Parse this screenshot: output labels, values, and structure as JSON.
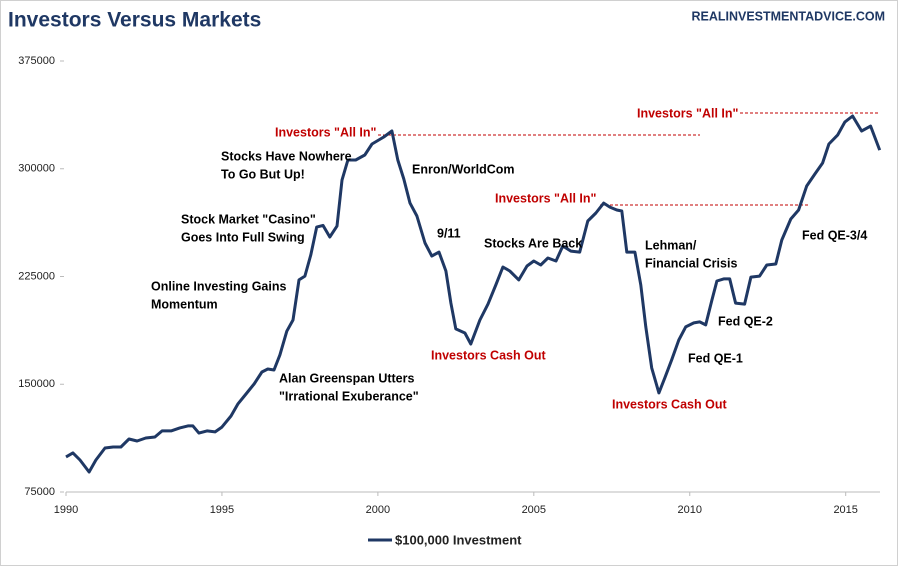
{
  "chart_data": {
    "type": "line",
    "title": "Investors Versus Markets",
    "subtitle": "REALINVESTMENTADVICE.COM",
    "x": [
      1990.0,
      1990.22,
      1990.45,
      1990.74,
      1990.96,
      1991.25,
      1991.51,
      1991.76,
      1992.02,
      1992.28,
      1992.56,
      1992.85,
      1993.08,
      1993.37,
      1993.65,
      1993.91,
      1994.07,
      1994.26,
      1994.52,
      1994.78,
      1995.0,
      1995.29,
      1995.51,
      1995.77,
      1996.03,
      1996.28,
      1996.47,
      1996.67,
      1996.86,
      1997.08,
      1997.28,
      1997.47,
      1997.66,
      1997.85,
      1998.04,
      1998.24,
      1998.46,
      1998.69,
      1998.85,
      1999.04,
      1999.29,
      1999.58,
      1999.81,
      2000.19,
      2000.45,
      2000.64,
      2000.83,
      2001.03,
      2001.25,
      2001.51,
      2001.73,
      2001.96,
      2002.18,
      2002.34,
      2002.5,
      2002.79,
      2002.98,
      2003.27,
      2003.53,
      2003.78,
      2004.01,
      2004.23,
      2004.52,
      2004.78,
      2005.0,
      2005.22,
      2005.45,
      2005.71,
      2005.93,
      2006.19,
      2006.47,
      2006.73,
      2006.99,
      2007.24,
      2007.44,
      2007.66,
      2007.82,
      2007.98,
      2008.24,
      2008.43,
      2008.59,
      2008.78,
      2009.01,
      2009.2,
      2009.42,
      2009.65,
      2009.87,
      2010.13,
      2010.32,
      2010.51,
      2010.71,
      2010.87,
      2011.09,
      2011.28,
      2011.47,
      2011.76,
      2011.96,
      2012.24,
      2012.47,
      2012.76,
      2012.95,
      2013.24,
      2013.49,
      2013.75,
      2014.01,
      2014.26,
      2014.46,
      2014.74,
      2014.97,
      2015.22,
      2015.51,
      2015.8,
      2016.09
    ],
    "series": [
      {
        "name": "$100,000 Investment",
        "color": "#1f3864",
        "values": [
          99400,
          102200,
          97300,
          88900,
          97300,
          105600,
          106300,
          106300,
          111900,
          110500,
          112600,
          113300,
          117500,
          117500,
          119600,
          121000,
          121000,
          116000,
          117500,
          116800,
          120200,
          127900,
          136200,
          143200,
          150200,
          158500,
          160600,
          159900,
          170400,
          186900,
          194700,
          222600,
          225300,
          240000,
          259400,
          260600,
          252500,
          260100,
          292100,
          306100,
          306100,
          309600,
          317200,
          322100,
          326300,
          306100,
          292900,
          276100,
          267100,
          248300,
          239300,
          242000,
          228800,
          206500,
          188500,
          185700,
          178000,
          194700,
          205800,
          219100,
          231600,
          228800,
          222600,
          232300,
          235800,
          233000,
          237900,
          235800,
          246200,
          242700,
          242000,
          263600,
          269200,
          276100,
          273300,
          271300,
          270600,
          242000,
          242000,
          219100,
          189900,
          161400,
          144000,
          154400,
          167000,
          180800,
          189900,
          192700,
          193400,
          191300,
          208600,
          221900,
          223300,
          223300,
          206500,
          205800,
          224600,
          225300,
          233000,
          233700,
          250400,
          265000,
          271300,
          288000,
          296300,
          304000,
          317200,
          323400,
          332500,
          336700,
          326300,
          329700,
          313000
        ]
      }
    ],
    "xlim": [
      1990,
      2016.1
    ],
    "xticks": [
      1990,
      1995,
      2000,
      2005,
      2010,
      2015
    ],
    "ylim": [
      75000,
      375000
    ],
    "yticks": [
      75000,
      150000,
      225000,
      300000,
      375000
    ],
    "legend": "bottom",
    "annotations": [
      {
        "lines": [
          "Stocks Have Nowhere",
          "To Go But Up!"
        ],
        "color": "#000000"
      },
      {
        "lines": [
          "Enron/WorldCom"
        ],
        "color": "#000000"
      },
      {
        "lines": [
          "Stock Market \"Casino\"",
          "Goes Into Full Swing"
        ],
        "color": "#000000"
      },
      {
        "lines": [
          "9/11"
        ],
        "color": "#000000"
      },
      {
        "lines": [
          "Stocks Are Back"
        ],
        "color": "#000000"
      },
      {
        "lines": [
          "Lehman/",
          "Financial Crisis"
        ],
        "color": "#000000"
      },
      {
        "lines": [
          "Fed QE-3/4"
        ],
        "color": "#000000"
      },
      {
        "lines": [
          "Online Investing Gains",
          "Momentum"
        ],
        "color": "#000000"
      },
      {
        "lines": [
          "Fed QE-2"
        ],
        "color": "#000000"
      },
      {
        "lines": [
          "Fed QE-1"
        ],
        "color": "#000000"
      },
      {
        "lines": [
          "Alan Greenspan Utters",
          "\"Irrational Exuberance\""
        ],
        "color": "#000000"
      },
      {
        "lines": [
          "Investors \"All In\""
        ],
        "color": "#c00000"
      },
      {
        "lines": [
          "Investors \"All In\""
        ],
        "color": "#c00000"
      },
      {
        "lines": [
          "Investors \"All In\""
        ],
        "color": "#c00000"
      },
      {
        "lines": [
          "Investors Cash Out"
        ],
        "color": "#c00000"
      },
      {
        "lines": [
          "Investors Cash Out"
        ],
        "color": "#c00000"
      }
    ]
  }
}
